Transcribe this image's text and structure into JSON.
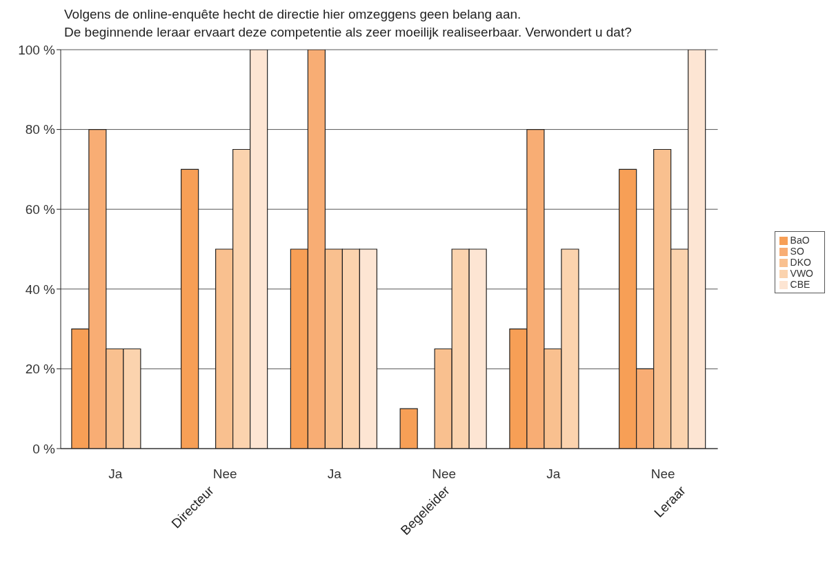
{
  "chart_data": {
    "type": "bar",
    "title": "Volgens de online-enquête hecht de directie hier omzeggens geen belang aan.",
    "subtitle": "De beginnende leraar ervaart deze competentie als zeer moeilijk realiseerbaar. Verwondert u dat?",
    "categories": [
      "Ja",
      "Nee",
      "Ja",
      "Nee",
      "Ja",
      "Nee"
    ],
    "annotations": [
      "Directeur",
      "Begeleider",
      "Leraar"
    ],
    "series": [
      {
        "name": "BaO",
        "color": "#f79f56",
        "values": [
          30,
          70,
          50,
          10,
          30,
          70
        ]
      },
      {
        "name": "SO",
        "color": "#f8ad74",
        "values": [
          80,
          null,
          100,
          null,
          80,
          20
        ]
      },
      {
        "name": "DKO",
        "color": "#f9c08f",
        "values": [
          25,
          50,
          50,
          25,
          25,
          75
        ]
      },
      {
        "name": "VWO",
        "color": "#fbd3ae",
        "values": [
          25,
          75,
          50,
          50,
          50,
          50
        ]
      },
      {
        "name": "CBE",
        "color": "#fde5d3",
        "values": [
          null,
          100,
          50,
          50,
          null,
          100
        ]
      }
    ],
    "ylim": [
      0,
      100
    ],
    "yticks": [
      {
        "value": 0,
        "label": "0 %"
      },
      {
        "value": 20,
        "label": "20 %"
      },
      {
        "value": 40,
        "label": "40 %"
      },
      {
        "value": 60,
        "label": "60 %"
      },
      {
        "value": 80,
        "label": "80 %"
      },
      {
        "value": 100,
        "label": "100 %"
      }
    ],
    "grid": "y",
    "legend": "right"
  }
}
